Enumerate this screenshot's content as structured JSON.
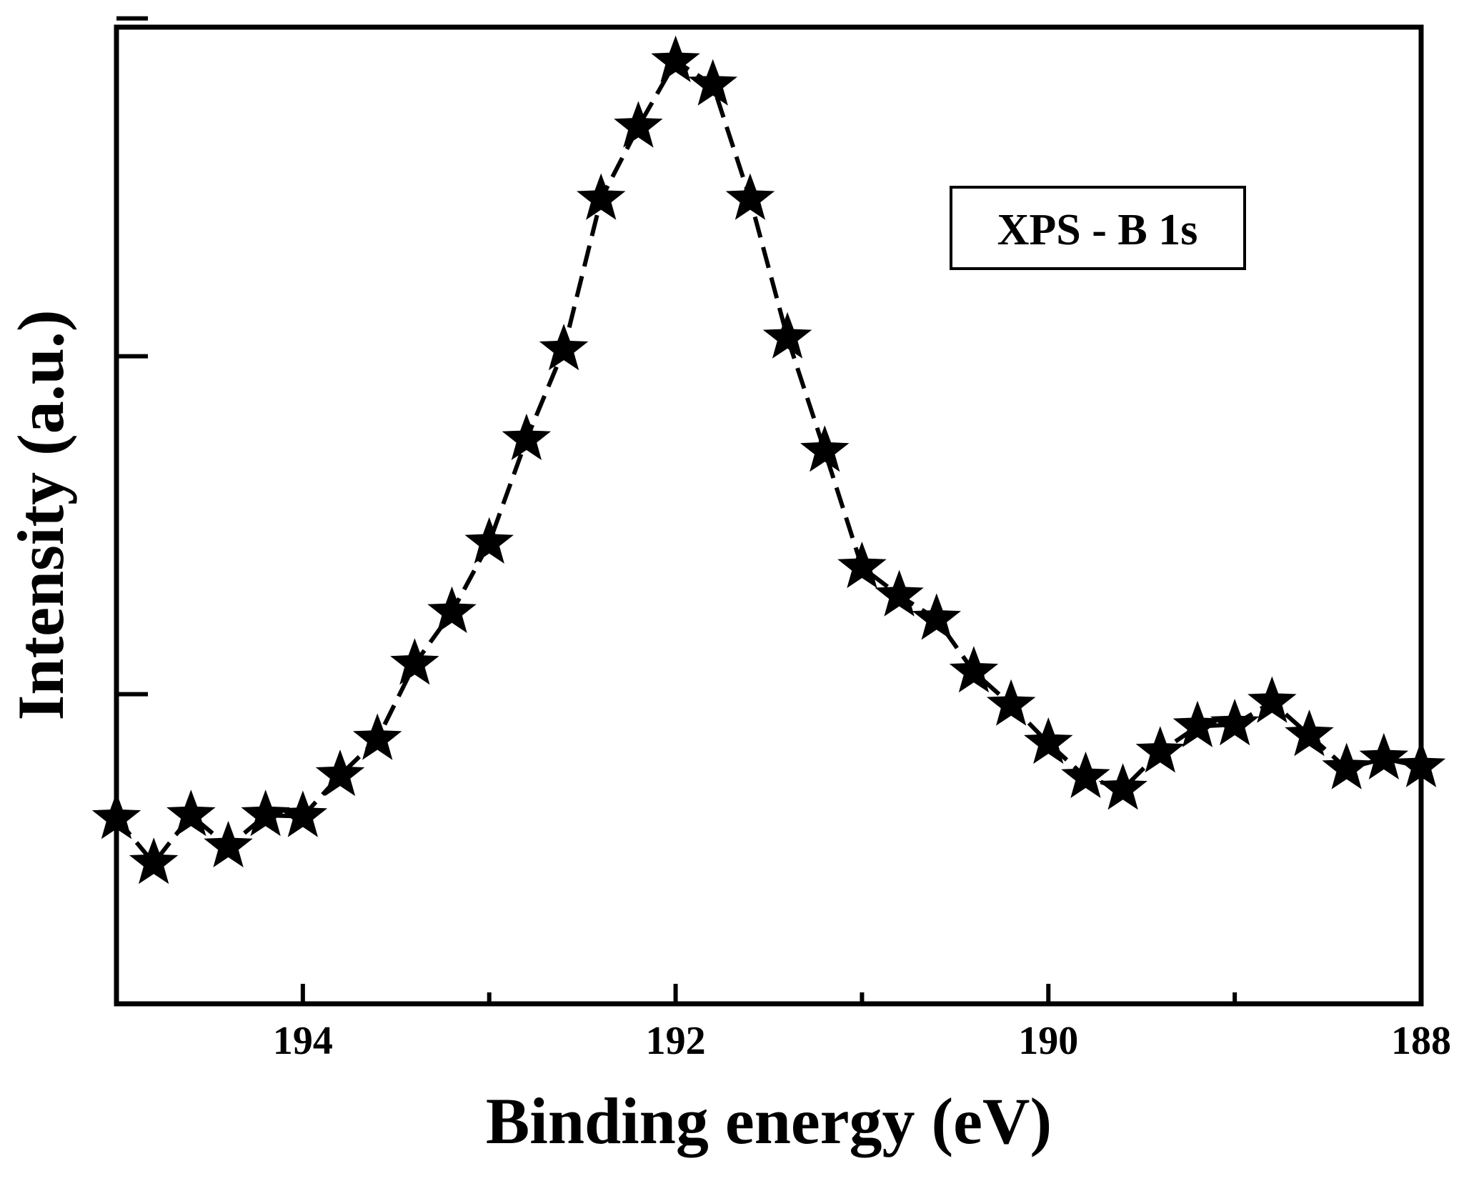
{
  "chart_data": {
    "type": "line",
    "title": "",
    "xlabel": "Binding energy (eV)",
    "ylabel": "Intensity (a.u.)",
    "xlim": [
      195.0,
      188.0
    ],
    "ylim": [
      0,
      100
    ],
    "x_reversed": true,
    "xticks": [
      194,
      192,
      190,
      188
    ],
    "xtick_labels": [
      "194",
      "192",
      "190",
      "188"
    ],
    "xminor_ticks": [
      193,
      191,
      189
    ],
    "yticks_unlabeled": [
      31.7,
      66.3,
      100.9
    ],
    "grid": false,
    "legend": {
      "position": "top-right",
      "boxed": true,
      "entries": [
        "XPS - B 1s"
      ]
    },
    "marker": "star",
    "line_style": "dashed",
    "color": "#000000",
    "series": [
      {
        "name": "XPS - B 1s",
        "x": [
          195.0,
          194.8,
          194.6,
          194.4,
          194.2,
          194.0,
          193.8,
          193.6,
          193.4,
          193.2,
          193.0,
          192.8,
          192.6,
          192.4,
          192.2,
          192.0,
          191.8,
          191.6,
          191.4,
          191.2,
          191.0,
          190.8,
          190.6,
          190.4,
          190.2,
          190.0,
          189.8,
          189.6,
          189.4,
          189.2,
          189.0,
          188.8,
          188.6,
          188.4,
          188.2,
          188.0
        ],
        "y": [
          19.0,
          14.4,
          19.3,
          16.1,
          19.3,
          19.2,
          23.4,
          27.1,
          34.8,
          40.1,
          47.2,
          57.8,
          67.0,
          82.4,
          89.8,
          96.5,
          94.1,
          82.4,
          68.2,
          56.6,
          44.7,
          41.8,
          39.4,
          34.0,
          30.6,
          26.7,
          23.2,
          22.0,
          25.8,
          28.4,
          28.6,
          30.9,
          27.5,
          24.1,
          25.1,
          24.3
        ]
      }
    ]
  }
}
